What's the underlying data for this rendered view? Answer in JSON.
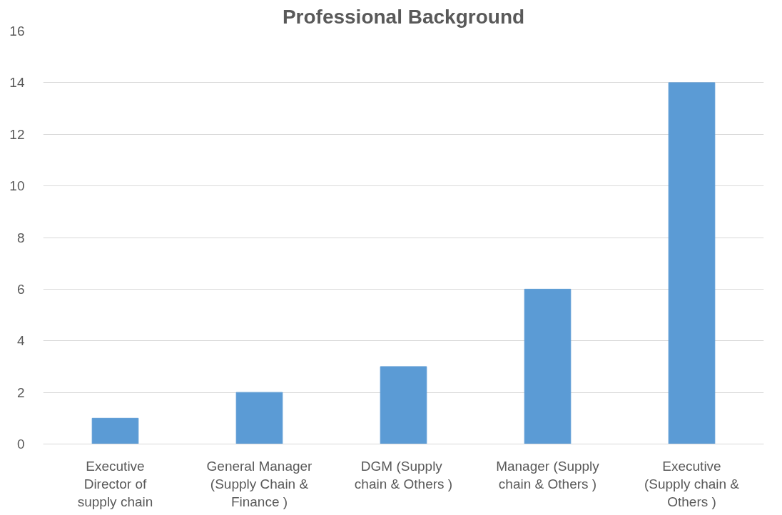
{
  "chart_data": {
    "type": "bar",
    "title": "Professional Background",
    "categories": [
      "Executive\nDirector of\nsupply chain",
      "General Manager\n(Supply Chain &\nFinance )",
      "DGM  (Supply\nchain & Others )",
      "Manager (Supply\nchain & Others )",
      "Executive\n(Supply chain &\nOthers )"
    ],
    "values": [
      1,
      2,
      3,
      6,
      14
    ],
    "color": "#5b9bd5",
    "ylim": [
      0,
      16
    ],
    "yticks": [
      0,
      2,
      4,
      6,
      8,
      10,
      12,
      14,
      16
    ],
    "grid": "y"
  }
}
